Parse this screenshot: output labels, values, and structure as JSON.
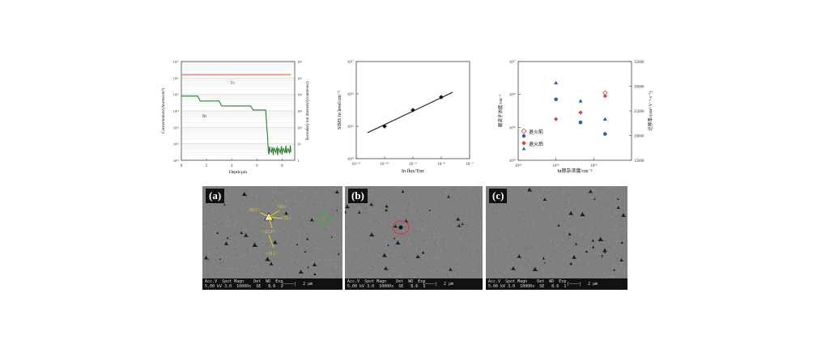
{
  "figure_top": {
    "chart_a": {
      "type": "line",
      "xlabel": "Depth/μm",
      "ylabel_left": "Concentration/(Atoms/cm³)",
      "ylabel_right": "Secondary ion intensity/(counts/sec)",
      "x_ticks": [
        "0",
        "2",
        "4",
        "6",
        "8"
      ],
      "y_left_ticks": [
        "10¹¹",
        "10¹²",
        "10¹³",
        "10¹⁴",
        "10¹⁵",
        "10¹⁶",
        "10¹⁷"
      ],
      "y_right_ticks": [
        "1",
        "10",
        "10²",
        "10³",
        "10⁴",
        "10⁵",
        "10⁶"
      ],
      "series_te_label": "Te",
      "series_in_label": "In",
      "te_color": "#e0806a",
      "in_color": "#2e7d32"
    },
    "chart_b": {
      "type": "scatter",
      "xlabel": "In flux/Torr",
      "ylabel": "SIMS In level/cm⁻³",
      "x_ticks": [
        "10⁻¹¹",
        "10⁻¹⁰",
        "10⁻⁹",
        "10⁻⁸",
        "10⁻⁷"
      ],
      "y_ticks": [
        "10¹⁴",
        "10¹⁵",
        "10¹⁶",
        "10¹⁷"
      ]
    },
    "chart_c": {
      "type": "scatter",
      "xlabel": "In掺杂浓度/cm⁻³",
      "ylabel_left": "载流子浓度/cm⁻³",
      "ylabel_right": "迁移率/(cm²·V⁻¹·s⁻¹)",
      "x_ticks": [
        "10¹⁴",
        "10¹⁵",
        "10¹⁶"
      ],
      "y_left_ticks": [
        "10¹⁴",
        "10¹⁵",
        "10¹⁶",
        "10¹⁷"
      ],
      "y_right_ticks": [
        "15000",
        "20000",
        "25000",
        "30000",
        "35000"
      ],
      "legend_before": "退火前",
      "legend_after": "退火后",
      "red": "#d64545",
      "blue": "#2f5fa8"
    }
  },
  "chart_data": [
    {
      "type": "line",
      "xlabel": "Depth/μm",
      "ylabel": "Concentration/(Atoms/cm³)",
      "xlim": [
        0,
        9
      ],
      "ylim_log10": [
        11,
        17
      ],
      "series": [
        {
          "name": "Te",
          "x": [
            0,
            8.7
          ],
          "y_log10": [
            16.2,
            16.2
          ]
        },
        {
          "name": "In",
          "x": [
            0,
            1.3,
            1.5,
            3.0,
            3.2,
            5.5,
            5.7,
            6.7,
            6.9,
            8.7
          ],
          "y_log10": [
            14.9,
            14.9,
            14.6,
            14.6,
            14.3,
            14.3,
            14.05,
            14.05,
            11.6,
            11.6
          ]
        }
      ]
    },
    {
      "type": "scatter",
      "xlabel": "In flux/Torr",
      "ylabel": "SIMS In level/cm⁻³",
      "x_log10": [
        -10,
        -9,
        -8
      ],
      "y_log10": [
        15.0,
        15.5,
        15.9
      ],
      "fit_x_log10": [
        -10.6,
        -7.6
      ],
      "fit_y_log10": [
        14.8,
        16.05
      ]
    },
    {
      "type": "scatter",
      "xlabel": "In掺杂浓度/cm⁻³",
      "ylabel": "载流子浓度/cm⁻³",
      "series": [
        {
          "name": "退火前",
          "marker": "open-diamond",
          "x_log10": [
            16.3
          ],
          "y_log10": [
            16.05
          ]
        },
        {
          "name": "退火前",
          "marker": "filled-diamond",
          "x_log10": [
            15.0,
            15.65,
            16.3
          ],
          "y_log10": [
            15.25,
            15.45,
            15.95
          ]
        },
        {
          "name": "退火后",
          "marker": "circle",
          "x_log10": [
            15.0,
            15.65,
            16.3
          ],
          "y_log10": [
            15.85,
            15.15,
            14.8
          ]
        },
        {
          "name": "退火后",
          "marker": "triangle",
          "x_log10": [
            15.0,
            15.65,
            16.3
          ],
          "y_log10": [
            16.35,
            15.8,
            15.25
          ]
        }
      ]
    }
  ],
  "figure_bottom": {
    "panels": [
      {
        "label": "(a)",
        "info": [
          "Acc.V  Spot Magn    Det  WD  Exp",
          "5.00 kV 3.0  10000x  SE   8.6  1"
        ],
        "scale": "2 μm"
      },
      {
        "label": "(b)",
        "info": [
          "Acc.V  Spot Magn    Det  WD  Exp",
          "5.00 kV 3.0  10000x  SE   8.6  1"
        ],
        "scale": "2 μm"
      },
      {
        "label": "(c)",
        "info": [
          "Acc.V  Spot Magn    Det  WD  Exp",
          "5.00 kV 3.0  10000x  SE   8.6  1"
        ],
        "scale": "2 μm"
      }
    ],
    "annotations_a": [
      "<011>",
      "<01>",
      "<21>",
      "<213>",
      "<111>"
    ]
  }
}
